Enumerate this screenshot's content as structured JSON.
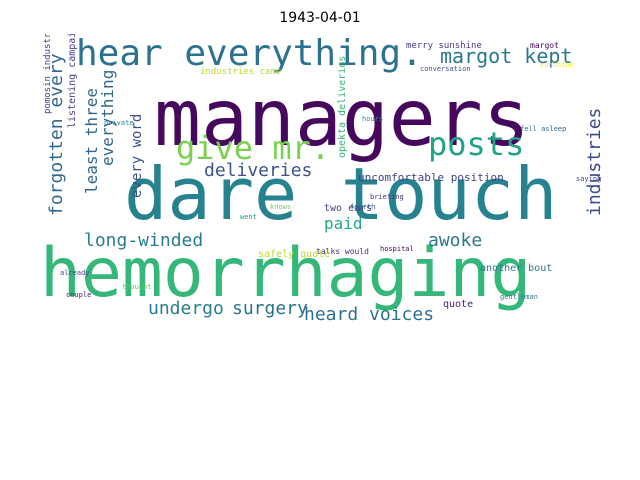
{
  "title": "1943-04-01",
  "words": [
    {
      "text": "managers",
      "color": "#46085c"
    },
    {
      "text": "hemorrhaging",
      "color": "#35b779"
    },
    {
      "text": "dare touch",
      "color": "#26828e"
    },
    {
      "text": "hear everything.",
      "color": "#2c728e"
    },
    {
      "text": "give mr.",
      "color": "#7ad151"
    },
    {
      "text": "posts",
      "color": "#20a386"
    },
    {
      "text": "margot kept",
      "color": "#2a788e"
    },
    {
      "text": "deliveries",
      "color": "#3b528b"
    },
    {
      "text": "forgotten every",
      "color": "#31688e"
    },
    {
      "text": "long-winded",
      "color": "#287d8e"
    },
    {
      "text": "awoke",
      "color": "#2a788e"
    },
    {
      "text": "undergo",
      "color": "#287d8e"
    },
    {
      "text": "surgery",
      "color": "#2c728e"
    },
    {
      "text": "heard voices",
      "color": "#2c728e"
    },
    {
      "text": "industries",
      "color": "#3e4a89"
    },
    {
      "text": "everything.",
      "color": "#31688e"
    },
    {
      "text": "least three",
      "color": "#31688e"
    },
    {
      "text": "every word",
      "color": "#3b528b"
    },
    {
      "text": "paid",
      "color": "#22a884"
    },
    {
      "text": "uncomfortable position",
      "color": "#404387"
    },
    {
      "text": "two ears",
      "color": "#404387"
    },
    {
      "text": "talks would",
      "color": "#482878"
    },
    {
      "text": "another bout",
      "color": "#2a788e"
    },
    {
      "text": "safely quote",
      "color": "#b5de2b"
    },
    {
      "text": "quote",
      "color": "#482173"
    },
    {
      "text": "merry sunshine",
      "color": "#443983"
    },
    {
      "text": "industries came",
      "color": "#b5de2b"
    },
    {
      "text": "opekta deliveries",
      "color": "#35b779"
    },
    {
      "text": "listening campaign",
      "color": "#404387"
    },
    {
      "text": "pomosin industries",
      "color": "#414487"
    },
    {
      "text": "margot",
      "color": "#440154"
    },
    {
      "text": "gentleman",
      "color": "#2a788e"
    },
    {
      "text": "hospital",
      "color": "#46085c"
    },
    {
      "text": "briefing",
      "color": "#472d7b"
    },
    {
      "text": "fourth",
      "color": "#365c8d"
    },
    {
      "text": "fell asleep",
      "color": "#31688e"
    },
    {
      "text": "went",
      "color": "#1f9e89"
    },
    {
      "text": "saying",
      "color": "#3e4a89"
    },
    {
      "text": "knows",
      "color": "#6ece58"
    },
    {
      "text": "hours",
      "color": "#21918c"
    },
    {
      "text": "private",
      "color": "#26828e"
    },
    {
      "text": "thought",
      "color": "#5ec962"
    },
    {
      "text": "sunshine",
      "color": "#fde725"
    },
    {
      "text": "conversation",
      "color": "#3b528b"
    },
    {
      "text": "already",
      "color": "#414487"
    },
    {
      "text": "couple",
      "color": "#482475"
    }
  ]
}
